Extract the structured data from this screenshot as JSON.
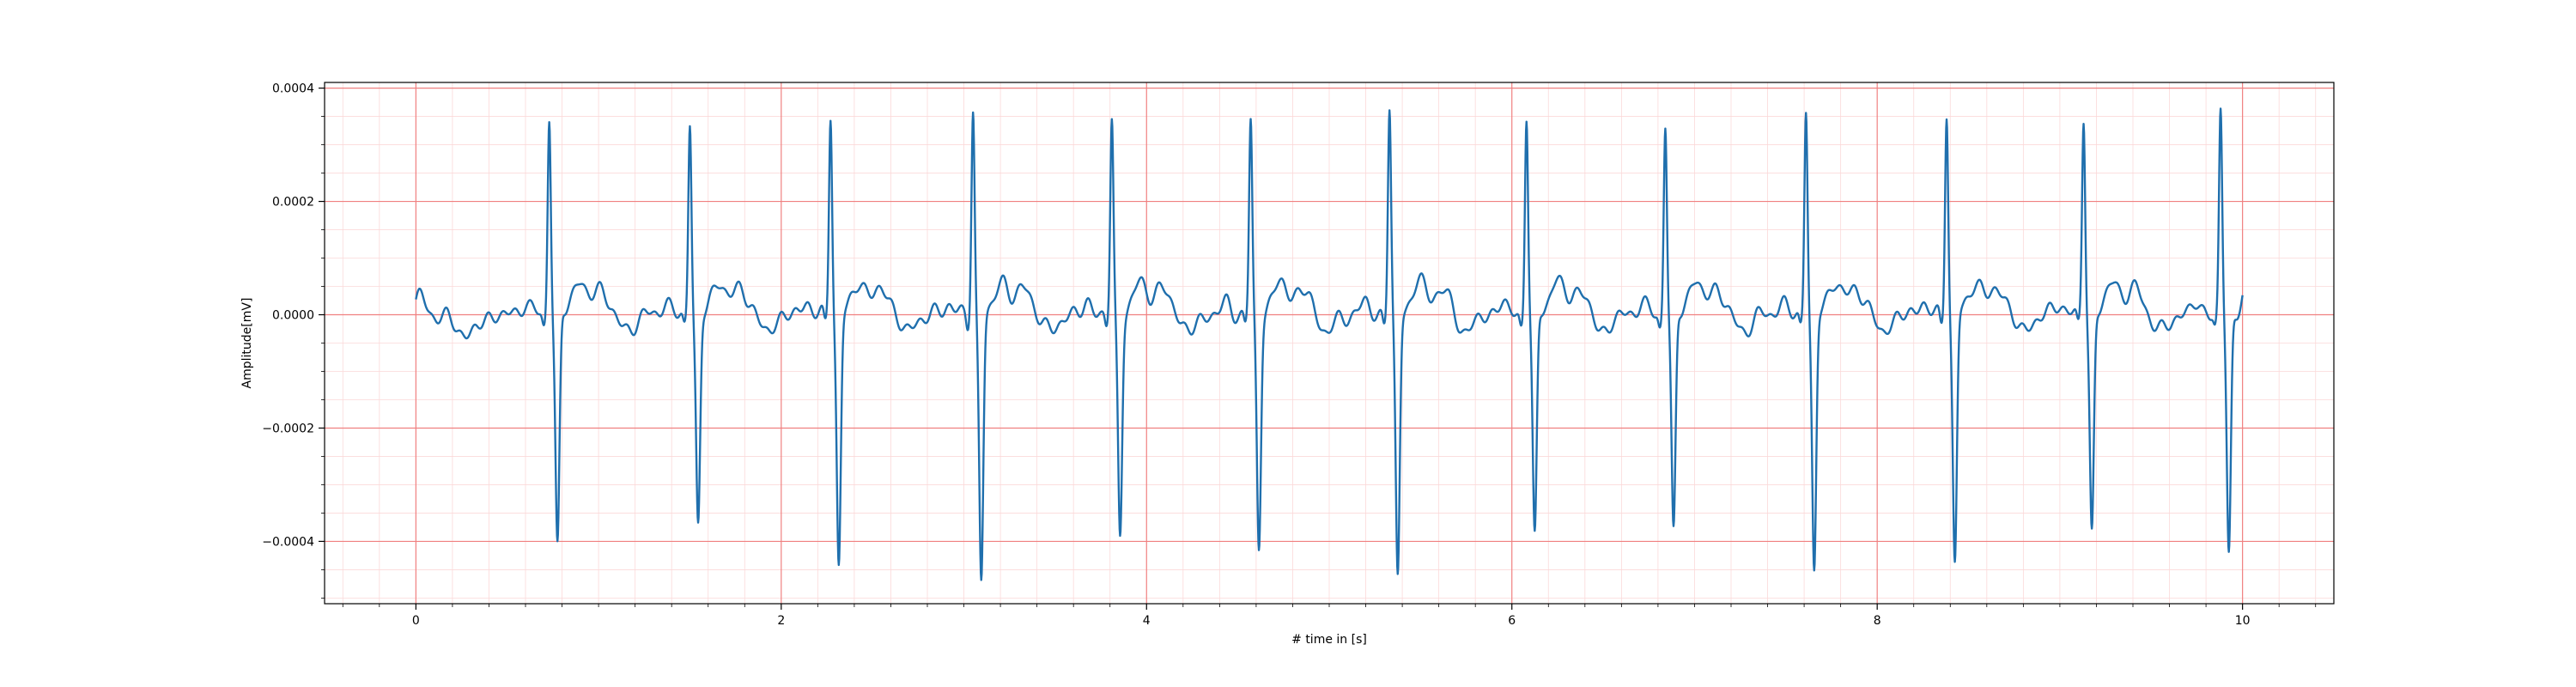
{
  "chart_data": {
    "type": "line",
    "title": "",
    "xlabel": "# time in [s]",
    "ylabel": "Amplitude[mV]",
    "xlim": [
      -0.5,
      10.5
    ],
    "ylim": [
      -0.00051,
      0.00041
    ],
    "xticks": [
      0,
      2,
      4,
      6,
      8,
      10
    ],
    "xtick_labels": [
      "0",
      "2",
      "4",
      "6",
      "8",
      "10"
    ],
    "yticks": [
      0.0004,
      0.0002,
      0.0,
      -0.0002,
      -0.0004
    ],
    "ytick_labels": [
      "0.0004",
      "0.0002",
      "0.0000",
      "−0.0002",
      "−0.0004"
    ],
    "grid": {
      "major": true,
      "minor": true,
      "major_color": "#f08080",
      "minor_color": "#fbd9d9"
    },
    "line_color": "#1f6fad",
    "grid_color": "#f08080",
    "series": [
      {
        "name": "",
        "beats": [
          {
            "t": 0.73,
            "r": 0.000355,
            "s": -0.000415
          },
          {
            "t": 1.5,
            "r": 0.00034,
            "s": -0.00037
          },
          {
            "t": 2.27,
            "r": 0.000355,
            "s": -0.00044
          },
          {
            "t": 3.05,
            "r": 0.000362,
            "s": -0.000465
          },
          {
            "t": 3.81,
            "r": 0.00034,
            "s": -0.00038
          },
          {
            "t": 4.57,
            "r": 0.00034,
            "s": -0.000405
          },
          {
            "t": 5.33,
            "r": 0.000365,
            "s": -0.00046
          },
          {
            "t": 6.08,
            "r": 0.000355,
            "s": -0.0004
          },
          {
            "t": 6.84,
            "r": 0.00034,
            "s": -0.00039
          },
          {
            "t": 7.61,
            "r": 0.000365,
            "s": -0.000455
          },
          {
            "t": 8.38,
            "r": 0.000362,
            "s": -0.00044
          },
          {
            "t": 9.13,
            "r": 0.00035,
            "s": -0.000385
          },
          {
            "t": 9.88,
            "r": 0.00036,
            "s": -0.000425
          }
        ],
        "duration": 10.0
      }
    ]
  }
}
